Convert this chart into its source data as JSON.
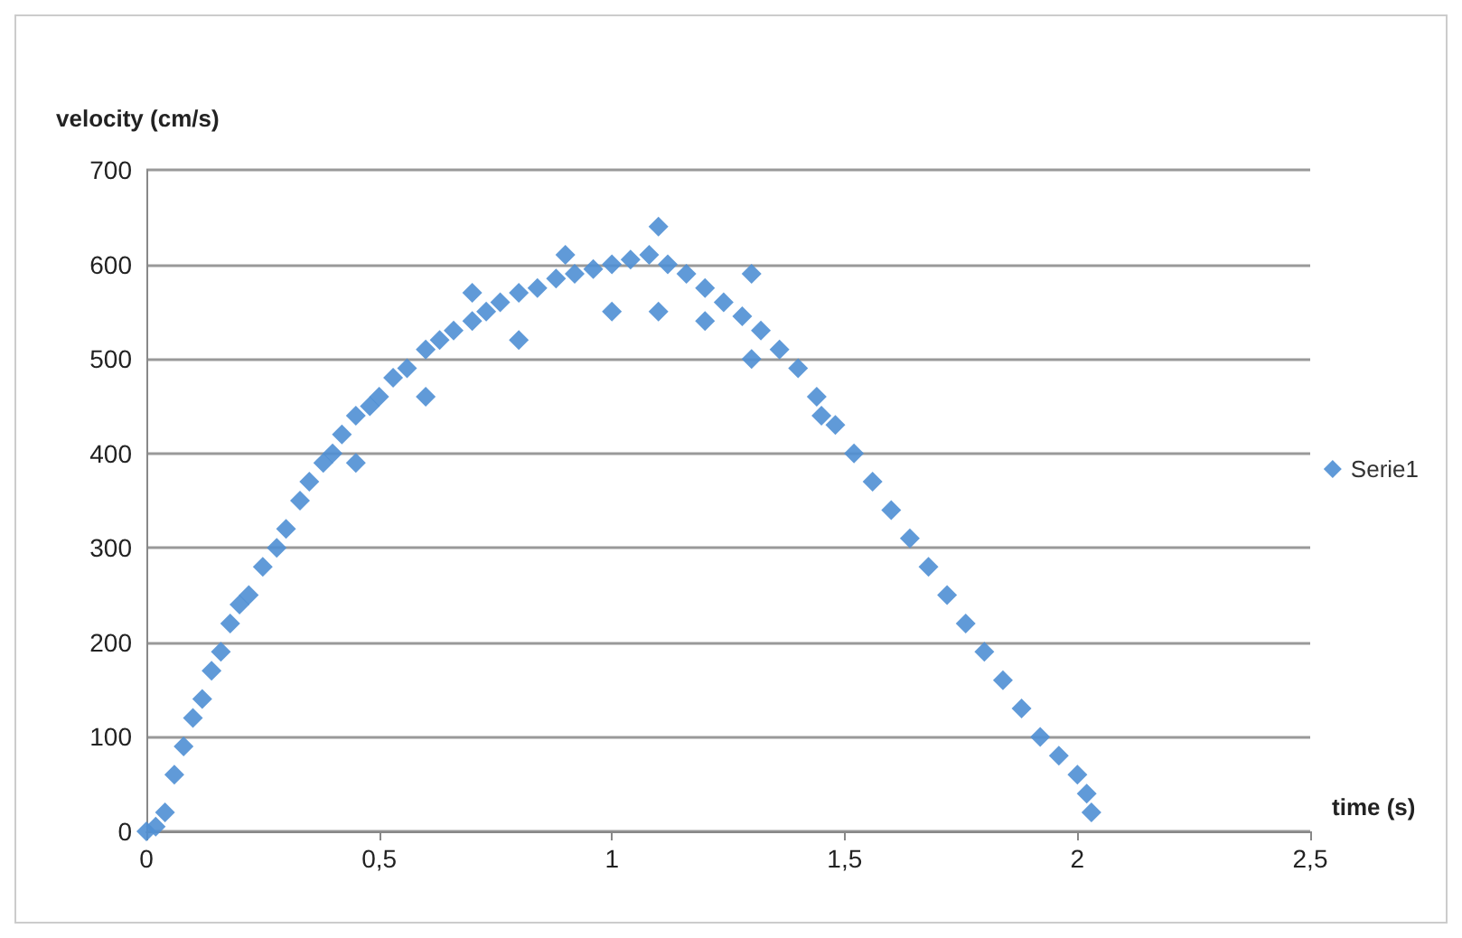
{
  "chart_data": {
    "type": "scatter",
    "ylabel": "velocity (cm/s)",
    "xlabel": "time (s)",
    "series": [
      {
        "name": "Serie1",
        "color": "#4f8fd4",
        "x": [
          0,
          0.02,
          0.04,
          0.06,
          0.08,
          0.1,
          0.12,
          0.14,
          0.16,
          0.18,
          0.2,
          0.22,
          0.25,
          0.28,
          0.3,
          0.33,
          0.35,
          0.38,
          0.4,
          0.42,
          0.45,
          0.45,
          0.48,
          0.5,
          0.53,
          0.56,
          0.6,
          0.6,
          0.63,
          0.66,
          0.7,
          0.7,
          0.73,
          0.76,
          0.8,
          0.8,
          0.84,
          0.88,
          0.9,
          0.92,
          0.96,
          1.0,
          1.0,
          1.04,
          1.08,
          1.1,
          1.1,
          1.12,
          1.16,
          1.2,
          1.2,
          1.24,
          1.28,
          1.3,
          1.3,
          1.32,
          1.36,
          1.4,
          1.44,
          1.45,
          1.48,
          1.52,
          1.56,
          1.6,
          1.64,
          1.68,
          1.72,
          1.76,
          1.8,
          1.84,
          1.88,
          1.92,
          1.96,
          2.0,
          2.02,
          2.03
        ],
        "values": [
          0,
          5,
          20,
          60,
          90,
          120,
          140,
          170,
          190,
          220,
          240,
          250,
          280,
          300,
          320,
          350,
          370,
          390,
          400,
          420,
          440,
          390,
          450,
          460,
          480,
          490,
          510,
          460,
          520,
          530,
          540,
          570,
          550,
          560,
          570,
          520,
          575,
          585,
          610,
          590,
          595,
          600,
          550,
          605,
          610,
          640,
          550,
          600,
          590,
          575,
          540,
          560,
          545,
          590,
          500,
          530,
          510,
          490,
          460,
          440,
          430,
          400,
          370,
          340,
          310,
          280,
          250,
          220,
          190,
          160,
          130,
          100,
          80,
          60,
          40,
          20
        ]
      }
    ],
    "xlim": [
      0,
      2.5
    ],
    "xticks": [
      0,
      {
        "value": 0.5,
        "label": "0,5"
      },
      1,
      {
        "value": 1.5,
        "label": "1,5"
      },
      2,
      {
        "value": 2.5,
        "label": "2,5"
      }
    ],
    "ylim": [
      0,
      700
    ],
    "yticks": [
      0,
      100,
      200,
      300,
      400,
      500,
      600,
      700
    ],
    "grid": "y",
    "legend": "right",
    "marker": "diamond"
  }
}
